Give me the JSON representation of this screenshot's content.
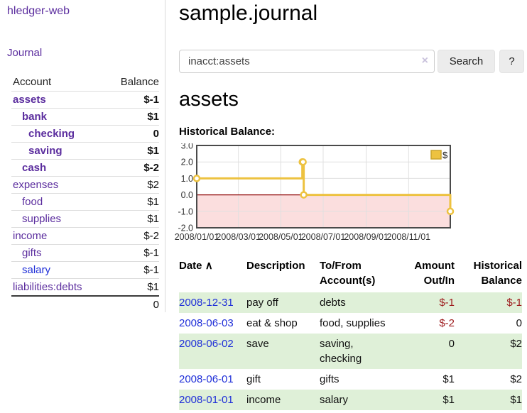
{
  "app": {
    "title": "hledger-web"
  },
  "colors": {
    "link_purple": "#5b2d9e",
    "link_blue": "#1f2fd8",
    "negative_strong": "#9d1a1c",
    "negative_muted": "#c17d85",
    "row_stripe_green": "#dff0d8",
    "chart_gold": "#edc240"
  },
  "sidebar": {
    "journal_link": "Journal",
    "accounts": {
      "account_header": "Account",
      "balance_header": "Balance",
      "rows": [
        {
          "name": "assets",
          "balance": "$-1",
          "level": 1,
          "bold": true
        },
        {
          "name": "bank",
          "balance": "$1",
          "level": 2,
          "bold": true
        },
        {
          "name": "checking",
          "balance": "0",
          "level": 3,
          "bold": true
        },
        {
          "name": "saving",
          "balance": "$1",
          "level": 3,
          "bold": true
        },
        {
          "name": "cash",
          "balance": "$-2",
          "level": 2,
          "bold": true
        },
        {
          "name": "expenses",
          "balance": "$2",
          "level": 1,
          "bold": false
        },
        {
          "name": "food",
          "balance": "$1",
          "level": 2,
          "bold": false
        },
        {
          "name": "supplies",
          "balance": "$1",
          "level": 2,
          "bold": false
        },
        {
          "name": "income",
          "balance": "$-2",
          "level": 1,
          "bold": false
        },
        {
          "name": "gifts",
          "balance": "$-1",
          "level": 2,
          "bold": false
        },
        {
          "name": "salary",
          "balance": "$-1",
          "level": 2,
          "bold": false,
          "unvisited": true
        },
        {
          "name": "liabilities:debts",
          "balance": "$1",
          "level": 1,
          "bold": false
        }
      ],
      "total": "0"
    }
  },
  "main": {
    "title": "sample.journal",
    "search": {
      "value": "inacct:assets",
      "clear_icon": "×",
      "search_label": "Search",
      "help_label": "?"
    },
    "account_heading": "assets",
    "section_label": "Historical Balance:"
  },
  "chart_data": {
    "type": "line",
    "line_style": "step",
    "title": "Historical Balance",
    "xlim": [
      "2008-01-01",
      "2008-12-31"
    ],
    "ylim": [
      -2,
      3
    ],
    "yticks": [
      3.0,
      2.0,
      1.0,
      0.0,
      -1.0,
      -2.0
    ],
    "xtick_labels": [
      "2008/01/01",
      "2008/03/01",
      "2008/05/01",
      "2008/07/01",
      "2008/09/01",
      "2008/11/01"
    ],
    "series": [
      {
        "name": "$",
        "color": "#edc240",
        "points": [
          [
            "2008-01-01",
            1
          ],
          [
            "2008-06-01",
            2
          ],
          [
            "2008-06-02",
            2
          ],
          [
            "2008-06-03",
            0
          ],
          [
            "2008-12-31",
            -1
          ]
        ]
      }
    ],
    "legend_position": "top-right",
    "grid": true,
    "grid_color": "#e0e0e0",
    "border_color": "#4a4a4a",
    "negative_region_fill": "#fbdede",
    "zero_line_color": "#8b0000"
  },
  "register_table": {
    "sort_icon": "∧",
    "headers": [
      "Date",
      "Description",
      "To/From Account(s)",
      "Amount Out/In",
      "Historical Balance"
    ],
    "rows": [
      {
        "date": "2008-12-31",
        "description": "pay off",
        "accounts": "debts",
        "amount": "$-1",
        "balance": "$-1"
      },
      {
        "date": "2008-06-03",
        "description": "eat & shop",
        "accounts": "food, supplies",
        "amount": "$-2",
        "balance": "0"
      },
      {
        "date": "2008-06-02",
        "description": "save",
        "accounts": "saving, checking",
        "amount": "0",
        "balance": "$2"
      },
      {
        "date": "2008-06-01",
        "description": "gift",
        "accounts": "gifts",
        "amount": "$1",
        "balance": "$2"
      },
      {
        "date": "2008-01-01",
        "description": "income",
        "accounts": "salary",
        "amount": "$1",
        "balance": "$1"
      }
    ]
  }
}
